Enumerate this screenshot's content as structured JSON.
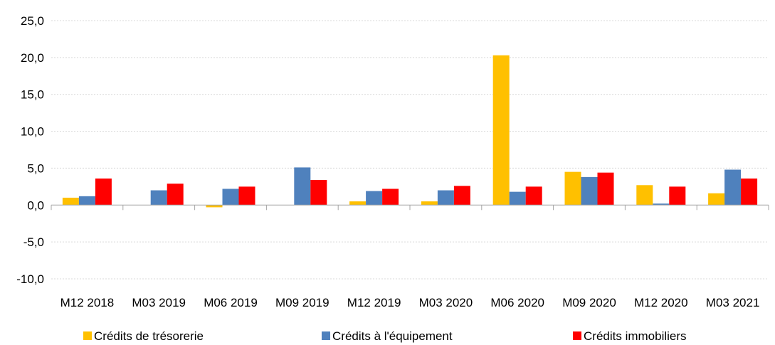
{
  "chart_data": {
    "type": "bar",
    "title": "",
    "xlabel": "",
    "ylabel": "",
    "ylim": [
      -10,
      25
    ],
    "yticks": [
      25,
      20,
      15,
      10,
      5,
      0,
      -5,
      -10
    ],
    "ytick_labels": [
      "25,0",
      "20,0",
      "15,0",
      "10,0",
      "5,0",
      "0,0",
      "-5,0",
      "-10,0"
    ],
    "grid": true,
    "legend_position": "bottom",
    "categories": [
      "M12 2018",
      "M03 2019",
      "M06 2019",
      "M09 2019",
      "M12 2019",
      "M03 2020",
      "M06 2020",
      "M09 2020",
      "M12 2020",
      "M03 2021"
    ],
    "series": [
      {
        "name": "Crédits de trésorerie",
        "color": "#FFC000",
        "values": [
          1.0,
          0.0,
          -0.3,
          0.0,
          0.5,
          0.5,
          20.3,
          4.5,
          2.7,
          1.6
        ]
      },
      {
        "name": "Crédits à l'équipement",
        "color": "#4F81BD",
        "values": [
          1.2,
          2.0,
          2.2,
          5.1,
          1.9,
          2.0,
          1.8,
          3.8,
          0.2,
          4.8
        ]
      },
      {
        "name": "Crédits immobiliers",
        "color": "#FF0000",
        "values": [
          3.6,
          2.9,
          2.5,
          3.4,
          2.2,
          2.6,
          2.5,
          4.4,
          2.5,
          3.6
        ]
      }
    ]
  }
}
